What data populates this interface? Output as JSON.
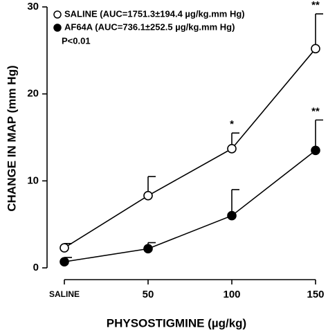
{
  "chart_data": {
    "type": "line",
    "x_label": "PHYSOSTIGMINE (µg/kg)",
    "y_label": "CHANGE IN MAP (mm Hg)",
    "note": "P<0.01",
    "categories": [
      "SALINE",
      "50",
      "100",
      "150"
    ],
    "ylim": [
      0,
      30
    ],
    "yticks": [
      0,
      10,
      20,
      30
    ],
    "series": [
      {
        "name": "SALINE (AUC=1751.3±194.4 µg/kg.mm Hg)",
        "color": "#ffffff",
        "values": [
          2.3,
          8.3,
          13.7,
          25.2
        ],
        "errors": [
          0.5,
          2.2,
          1.8,
          4.0
        ],
        "significance": [
          null,
          null,
          "*",
          "**"
        ]
      },
      {
        "name": "AF64A (AUC=736.1±252.5 µg/kg.mm Hg)",
        "color": "#000000",
        "values": [
          0.7,
          2.2,
          6.0,
          13.5
        ],
        "errors": [
          0.5,
          0.7,
          3.0,
          3.5
        ],
        "significance": [
          null,
          null,
          null,
          "**"
        ]
      }
    ]
  }
}
